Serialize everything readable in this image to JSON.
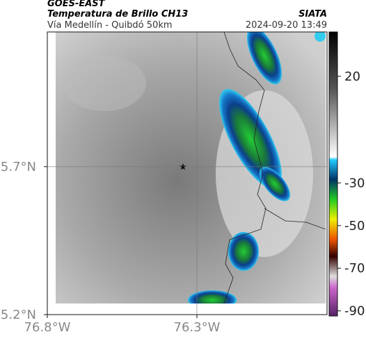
{
  "header": {
    "source": "GOES-EAST",
    "product": "Temperatura de Brillo CH13",
    "region": "Vía Medellín - Quibdó 50km",
    "organization": "SIATA",
    "timestamp": "2024-09-20 13:49"
  },
  "map": {
    "xlim": [
      -76.8,
      -75.865
    ],
    "ylim": [
      5.2,
      6.155
    ],
    "xticks": [
      {
        "value": -76.8,
        "label": "76.8°W"
      },
      {
        "value": -76.3,
        "label": "76.3°W"
      }
    ],
    "yticks": [
      {
        "value": 5.2,
        "label": "5.2°N"
      },
      {
        "value": 5.7,
        "label": "5.7°N"
      }
    ],
    "gridlines": [
      {
        "lon": -76.3
      },
      {
        "lat": 5.7
      }
    ]
  },
  "colorbar": {
    "lim": [
      40.8,
      -92.4
    ],
    "ticks": [
      20,
      -30,
      -50,
      -70,
      -90
    ]
  }
}
